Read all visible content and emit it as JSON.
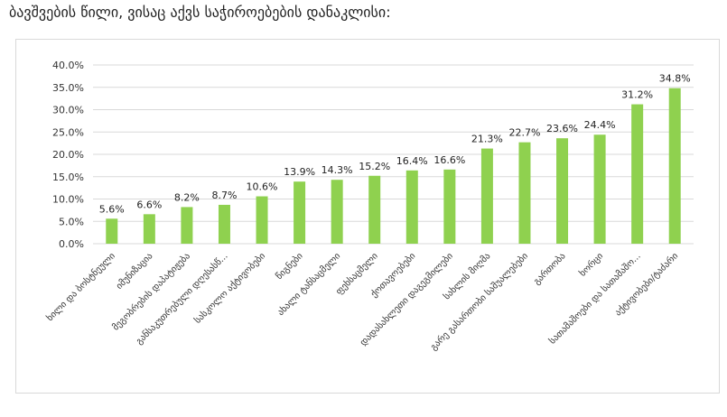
{
  "page": {
    "title": "ბავშვების წილი, ვისაც აქვს საჭიროებების დანაკლისი:"
  },
  "chart_data": {
    "type": "bar",
    "title": "",
    "xlabel": "",
    "ylabel": "",
    "ylim": [
      0,
      40
    ],
    "y_ticks": [
      0,
      5,
      10,
      15,
      20,
      25,
      30,
      35,
      40
    ],
    "y_tick_labels": [
      "0.0%",
      "5.0%",
      "10.0%",
      "15.0%",
      "20.0%",
      "25.0%",
      "30.0%",
      "35.0%",
      "40.0%"
    ],
    "grid": true,
    "legend": "none",
    "bar_color": "#8fd14f",
    "categories": [
      "ხილი და ბოსტნეული",
      "იმუნიზაცია",
      "მეგობრების დაპატიჟება",
      "განსაკუთრებული დღესასწ...",
      "სასკოლო აქტივობები",
      "წიგნები",
      "ახალი ტანსაცმელი",
      "ფეხსაცმელი",
      "ქოთავოებები",
      "დადასახლეთი დაგეგმილები",
      "სახლის მიღმა",
      "გარე გასართობი საშუალებები",
      "გართობა",
      "ხორცი",
      "სათამაშოები და სათამაშო...",
      "აქტივობები/ტაძარი"
    ],
    "values": [
      5.6,
      6.6,
      8.2,
      8.7,
      10.6,
      13.9,
      14.3,
      15.2,
      16.4,
      16.6,
      21.3,
      22.7,
      23.6,
      24.4,
      31.2,
      34.8
    ],
    "value_labels": [
      "5.6%",
      "6.6%",
      "8.2%",
      "8.7%",
      "10.6%",
      "13.9%",
      "14.3%",
      "15.2%",
      "16.4%",
      "16.6%",
      "21.3%",
      "22.7%",
      "23.6%",
      "24.4%",
      "31.2%",
      "34.8%"
    ]
  }
}
